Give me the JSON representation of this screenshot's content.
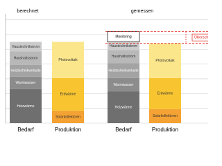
{
  "chart_data": {
    "type": "stacked-bar",
    "groups": [
      "berechnet",
      "gemessen"
    ],
    "categories": [
      "Bedarf",
      "Produktion",
      "Bedarf",
      "Produktion"
    ],
    "series": [
      {
        "name": "Heizwärme",
        "color": "#6f6f6f",
        "values": [
          2.3,
          null,
          2.15,
          null
        ]
      },
      {
        "name": "Warmwasser",
        "color": "#8c8c8c",
        "values": [
          0.85,
          null,
          0.9,
          null
        ]
      },
      {
        "name": "Heiztechnikverluste",
        "color": "#a3a3a3",
        "values": [
          0.8,
          null,
          1.0,
          null
        ]
      },
      {
        "name": "Haushaltsstrom",
        "color": "#b8b8b8",
        "values": [
          0.9,
          null,
          0.9,
          null
        ]
      },
      {
        "name": "Haustechnikstrom",
        "color": "#cbcbcb",
        "values": [
          0.65,
          null,
          0.55,
          null
        ]
      },
      {
        "name": "Monitoring",
        "color": "#ffffff",
        "values": [
          null,
          null,
          0.7,
          null
        ]
      },
      {
        "name": "Solarkollektoren",
        "color": "#f4a233",
        "values": [
          null,
          0.85,
          null,
          0.95
        ]
      },
      {
        "name": "Erdwärme",
        "color": "#f8c531",
        "values": [
          null,
          2.2,
          null,
          2.1
        ]
      },
      {
        "name": "Photovoltaik",
        "color": "#fbe68c",
        "values": [
          null,
          2.45,
          null,
          2.35
        ]
      }
    ],
    "annotation": "Überschuss",
    "ylim": [
      0,
      7.4
    ],
    "yticks": [
      0,
      1,
      2,
      3,
      4,
      5,
      6,
      7
    ],
    "grid": true
  }
}
